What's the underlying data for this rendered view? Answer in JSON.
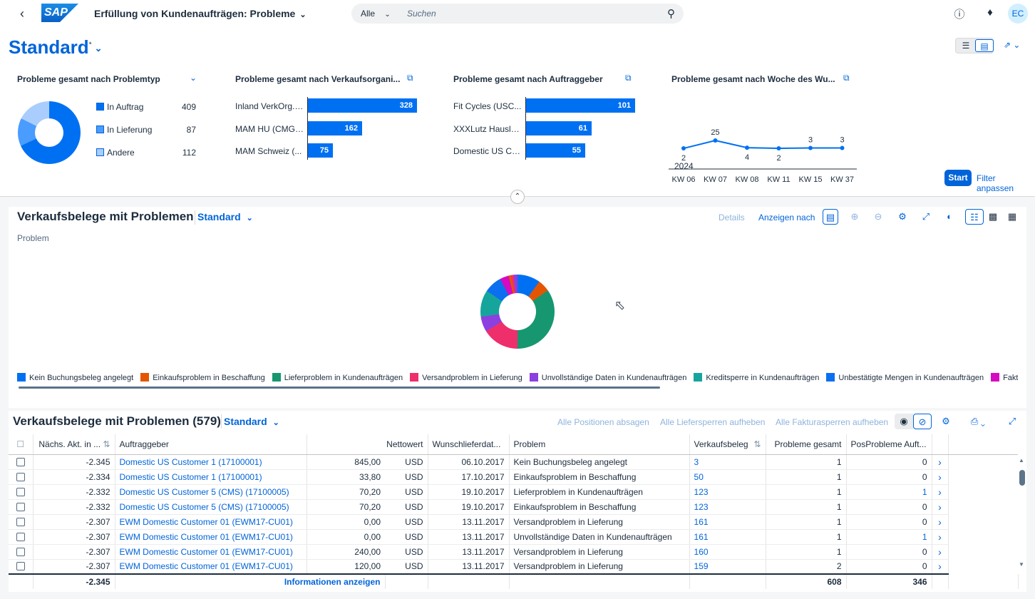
{
  "shell": {
    "app_title": "Erfüllung von Kundenaufträgen: Probleme",
    "search_scope": "Alle",
    "search_placeholder": "Suchen",
    "avatar_initials": "EC"
  },
  "header": {
    "variant_title": "Standard",
    "variant_modified": "*",
    "start_label": "Start",
    "filter_label": "Filter anpassen"
  },
  "cards": {
    "problem_type": {
      "title": "Probleme gesamt nach Problemtyp",
      "items": [
        {
          "label": "In Auftrag",
          "value": "409",
          "color": "#0070f2"
        },
        {
          "label": "In Lieferung",
          "value": "87",
          "color": "#4a9cff"
        },
        {
          "label": "Andere",
          "value": "112",
          "color": "#a9cdfd"
        }
      ]
    },
    "sales_org": {
      "title": "Probleme gesamt nach Verkaufsorgani...",
      "bars": [
        {
          "label": "Inland VerkOrg. ...",
          "value": 328
        },
        {
          "label": "MAM HU (CMG ...",
          "value": 162
        },
        {
          "label": "MAM Schweiz (...",
          "value": 75
        }
      ]
    },
    "customer": {
      "title": "Probleme gesamt nach Auftraggeber",
      "bars": [
        {
          "label": "Fit Cycles (USC...",
          "value": 101
        },
        {
          "label": "XXXLutz Hausla...",
          "value": 61
        },
        {
          "label": "Domestic US Cu...",
          "value": 55
        }
      ]
    },
    "week": {
      "title": "Probleme gesamt nach Woche des Wu...",
      "year_label": "2024"
    }
  },
  "chart_data": {
    "type": "line",
    "categories": [
      "KW 06",
      "KW 07",
      "KW 08",
      "KW 11",
      "KW 15",
      "KW 37"
    ],
    "values": [
      2,
      25,
      4,
      2,
      3,
      3
    ],
    "title": "Probleme gesamt nach Woche des Wu..."
  },
  "chart_section": {
    "title": "Verkaufsbelege mit Problemen",
    "variant": "Standard",
    "details_label": "Details",
    "show_by_label": "Anzeigen nach",
    "dimension_label": "Problem",
    "legend": [
      {
        "label": "Kein Buchungsbeleg angelegt",
        "color": "#0070f2"
      },
      {
        "label": "Einkaufsproblem in Beschaffung",
        "color": "#e35500"
      },
      {
        "label": "Lieferproblem in Kundenaufträgen",
        "color": "#16976f"
      },
      {
        "label": "Versandproblem in Lieferung",
        "color": "#ee2f6c"
      },
      {
        "label": "Unvollständige Daten in Kundenaufträgen",
        "color": "#8c40e0"
      },
      {
        "label": "Kreditsperre in Kundenaufträgen",
        "color": "#16a59c"
      },
      {
        "label": "Unbestätigte Mengen in Kundenaufträgen",
        "color": "#0b6ff0"
      },
      {
        "label": "Fakturierungsproblem in Lieferun",
        "color": "#d60ac1"
      }
    ]
  },
  "table_section": {
    "title": "Verkaufsbelege mit Problemen (579)",
    "variant": "Standard",
    "actions": [
      "Alle Positionen absagen",
      "Alle Liefersperren aufheben",
      "Alle Fakturasperren aufheben"
    ],
    "columns": [
      "Nächs. Akt. in ...",
      "Auftraggeber",
      "Nettowert",
      "Wunschlieferdat...",
      "Problem",
      "Verkaufsbeleg",
      "Probleme gesamt",
      "PosProbleme Auft..."
    ],
    "rows": [
      {
        "next": "-2.345",
        "customer": "Domestic US Customer 1 (17100001)",
        "net": "845,00",
        "cur": "USD",
        "date": "06.10.2017",
        "problem": "Kein Buchungsbeleg angelegt",
        "doc": "3",
        "total": "1",
        "pos": "0"
      },
      {
        "next": "-2.334",
        "customer": "Domestic US Customer 1 (17100001)",
        "net": "33,80",
        "cur": "USD",
        "date": "17.10.2017",
        "problem": "Einkaufsproblem in Beschaffung",
        "doc": "50",
        "total": "1",
        "pos": "0"
      },
      {
        "next": "-2.332",
        "customer": "Domestic US Customer 5 (CMS) (17100005)",
        "net": "70,20",
        "cur": "USD",
        "date": "19.10.2017",
        "problem": "Lieferproblem in Kundenaufträgen",
        "doc": "123",
        "total": "1",
        "pos": "1"
      },
      {
        "next": "-2.332",
        "customer": "Domestic US Customer 5 (CMS) (17100005)",
        "net": "70,20",
        "cur": "USD",
        "date": "19.10.2017",
        "problem": "Einkaufsproblem in Beschaffung",
        "doc": "123",
        "total": "1",
        "pos": "0"
      },
      {
        "next": "-2.307",
        "customer": "EWM Domestic Customer 01 (EWM17-CU01)",
        "net": "0,00",
        "cur": "USD",
        "date": "13.11.2017",
        "problem": "Versandproblem in Lieferung",
        "doc": "161",
        "total": "1",
        "pos": "0"
      },
      {
        "next": "-2.307",
        "customer": "EWM Domestic Customer 01 (EWM17-CU01)",
        "net": "0,00",
        "cur": "USD",
        "date": "13.11.2017",
        "problem": "Unvollständige Daten in Kundenaufträgen",
        "doc": "161",
        "total": "1",
        "pos": "1"
      },
      {
        "next": "-2.307",
        "customer": "EWM Domestic Customer 01 (EWM17-CU01)",
        "net": "240,00",
        "cur": "USD",
        "date": "13.11.2017",
        "problem": "Versandproblem in Lieferung",
        "doc": "160",
        "total": "1",
        "pos": "0"
      },
      {
        "next": "-2.307",
        "customer": "EWM Domestic Customer 01 (EWM17-CU01)",
        "net": "120,00",
        "cur": "USD",
        "date": "13.11.2017",
        "problem": "Versandproblem in Lieferung",
        "doc": "159",
        "total": "2",
        "pos": "0"
      }
    ],
    "footer": {
      "next": "-2.345",
      "info_link": "Informationen anzeigen",
      "total": "608",
      "pos": "346"
    }
  }
}
